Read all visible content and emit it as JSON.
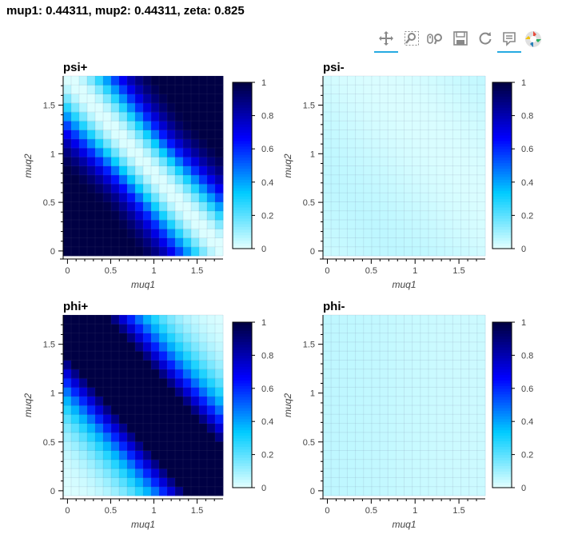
{
  "suptitle": "mup1: 0.44311, mup2: 0.44311, zeta: 0.825",
  "toolbar": {
    "tools": [
      {
        "name": "pan-tool-icon",
        "active": true
      },
      {
        "name": "box-zoom-tool-icon",
        "active": false
      },
      {
        "name": "wheel-zoom-tool-icon",
        "active": false
      },
      {
        "name": "save-tool-icon",
        "active": false
      },
      {
        "name": "reset-tool-icon",
        "active": false
      },
      {
        "name": "hover-tool-icon",
        "active": true
      },
      {
        "name": "bokeh-logo-icon",
        "active": false
      }
    ]
  },
  "chart_data": [
    {
      "type": "heatmap",
      "title": "psi+",
      "xlabel": "muq1",
      "ylabel": "muq2",
      "xlim": [
        -0.05,
        1.8
      ],
      "ylim": [
        -0.05,
        1.8
      ],
      "x_ticks": [
        "0",
        "0.5",
        "1",
        "1.5"
      ],
      "y_ticks": [
        "0",
        "0.5",
        "1",
        "1.5"
      ],
      "grid_cells": 20,
      "value_function": "psi_plus",
      "colorbar": {
        "min": 0,
        "max": 1,
        "ticks": [
          "0",
          "0.2",
          "0.4",
          "0.6",
          "0.8",
          "1"
        ]
      },
      "colormap": [
        "#e0ffff",
        "#00ccff",
        "#0000ff",
        "#000044"
      ]
    },
    {
      "type": "heatmap",
      "title": "psi-",
      "xlabel": "muq1",
      "ylabel": "muq2",
      "xlim": [
        -0.05,
        1.8
      ],
      "ylim": [
        -0.05,
        1.8
      ],
      "x_ticks": [
        "0",
        "0.5",
        "1",
        "1.5"
      ],
      "y_ticks": [
        "0",
        "0.5",
        "1",
        "1.5"
      ],
      "grid_cells": 20,
      "value_function": "psi_minus",
      "colorbar": {
        "min": 0,
        "max": 1,
        "ticks": [
          "0",
          "0.2",
          "0.4",
          "0.6",
          "0.8",
          "1"
        ]
      },
      "colormap": [
        "#e0ffff",
        "#00ccff",
        "#0000ff",
        "#000044"
      ]
    },
    {
      "type": "heatmap",
      "title": "phi+",
      "xlabel": "muq1",
      "ylabel": "muq2",
      "xlim": [
        -0.05,
        1.8
      ],
      "ylim": [
        -0.05,
        1.8
      ],
      "x_ticks": [
        "0",
        "0.5",
        "1",
        "1.5"
      ],
      "y_ticks": [
        "0",
        "0.5",
        "1",
        "1.5"
      ],
      "grid_cells": 20,
      "value_function": "phi_plus",
      "colorbar": {
        "min": 0,
        "max": 1,
        "ticks": [
          "0",
          "0.2",
          "0.4",
          "0.6",
          "0.8",
          "1"
        ]
      },
      "colormap": [
        "#e0ffff",
        "#00ccff",
        "#0000ff",
        "#000044"
      ]
    },
    {
      "type": "heatmap",
      "title": "phi-",
      "xlabel": "muq1",
      "ylabel": "muq2",
      "xlim": [
        -0.05,
        1.8
      ],
      "ylim": [
        -0.05,
        1.8
      ],
      "x_ticks": [
        "0",
        "0.5",
        "1",
        "1.5"
      ],
      "y_ticks": [
        "0",
        "0.5",
        "1",
        "1.5"
      ],
      "grid_cells": 20,
      "value_function": "phi_minus",
      "colorbar": {
        "min": 0,
        "max": 1,
        "ticks": [
          "0",
          "0.2",
          "0.4",
          "0.6",
          "0.8",
          "1"
        ]
      },
      "colormap": [
        "#e0ffff",
        "#00ccff",
        "#0000ff",
        "#000044"
      ]
    }
  ]
}
